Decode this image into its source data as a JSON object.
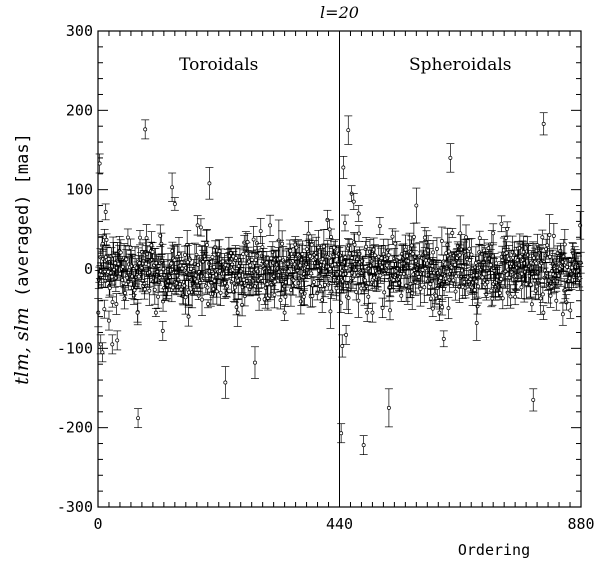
{
  "chart_data": {
    "type": "scatter",
    "title": "l=20",
    "xlabel": "Ordering",
    "ylabel": {
      "italic_part": "tlm, slm",
      "normal_part": "(averaged)   [mas]"
    },
    "xlim": [
      0,
      880
    ],
    "ylim": [
      -300,
      300
    ],
    "x_ticks": [
      0,
      440,
      880
    ],
    "y_ticks": [
      -300,
      -200,
      -100,
      0,
      100,
      200,
      300
    ],
    "x_minor_step": 20,
    "y_minor_step": 20,
    "divider_x": 440,
    "regions": [
      {
        "label": "Toroidals",
        "x_range": [
          0,
          440
        ]
      },
      {
        "label": "Spheroidals",
        "x_range": [
          440,
          880
        ]
      }
    ],
    "error_bars": true,
    "outliers": [
      {
        "x": 3,
        "y": 133,
        "err": 12
      },
      {
        "x": 5,
        "y": -95,
        "err": 12
      },
      {
        "x": 8,
        "y": -105,
        "err": 12
      },
      {
        "x": 12,
        "y": 40,
        "err": 10
      },
      {
        "x": 14,
        "y": 72,
        "err": 10
      },
      {
        "x": 20,
        "y": -65,
        "err": 12
      },
      {
        "x": 26,
        "y": -95,
        "err": 12
      },
      {
        "x": 35,
        "y": -90,
        "err": 12
      },
      {
        "x": 72,
        "y": -55,
        "err": 12
      },
      {
        "x": 73,
        "y": -188,
        "err": 12
      },
      {
        "x": 86,
        "y": 176,
        "err": 12
      },
      {
        "x": 118,
        "y": -78,
        "err": 12
      },
      {
        "x": 135,
        "y": 103,
        "err": 18
      },
      {
        "x": 140,
        "y": 82,
        "err": 8
      },
      {
        "x": 165,
        "y": -60,
        "err": 12
      },
      {
        "x": 203,
        "y": 108,
        "err": 20
      },
      {
        "x": 232,
        "y": -143,
        "err": 20
      },
      {
        "x": 286,
        "y": -118,
        "err": 20
      },
      {
        "x": 340,
        "y": -55,
        "err": 10
      },
      {
        "x": 375,
        "y": -35,
        "err": 10
      },
      {
        "x": 418,
        "y": 62,
        "err": 12
      },
      {
        "x": 422,
        "y": 50,
        "err": 12
      },
      {
        "x": 430,
        "y": 27,
        "err": 8
      },
      {
        "x": 443,
        "y": -207,
        "err": 12
      },
      {
        "x": 445,
        "y": -97,
        "err": 14
      },
      {
        "x": 447,
        "y": 128,
        "err": 14
      },
      {
        "x": 450,
        "y": 58,
        "err": 10
      },
      {
        "x": 452,
        "y": -83,
        "err": 12
      },
      {
        "x": 456,
        "y": 175,
        "err": 18
      },
      {
        "x": 462,
        "y": 95,
        "err": 10
      },
      {
        "x": 466,
        "y": 85,
        "err": 10
      },
      {
        "x": 475,
        "y": 70,
        "err": 10
      },
      {
        "x": 484,
        "y": -222,
        "err": 12
      },
      {
        "x": 500,
        "y": -55,
        "err": 12
      },
      {
        "x": 530,
        "y": -175,
        "err": 24
      },
      {
        "x": 532,
        "y": -52,
        "err": 12
      },
      {
        "x": 580,
        "y": 80,
        "err": 22
      },
      {
        "x": 610,
        "y": -50,
        "err": 10
      },
      {
        "x": 622,
        "y": -55,
        "err": 10
      },
      {
        "x": 627,
        "y": -48,
        "err": 10
      },
      {
        "x": 630,
        "y": -88,
        "err": 10
      },
      {
        "x": 642,
        "y": 140,
        "err": 18
      },
      {
        "x": 660,
        "y": 45,
        "err": 22
      },
      {
        "x": 690,
        "y": -68,
        "err": 22
      },
      {
        "x": 720,
        "y": 45,
        "err": 12
      },
      {
        "x": 735,
        "y": 57,
        "err": 10
      },
      {
        "x": 760,
        "y": -35,
        "err": 10
      },
      {
        "x": 793,
        "y": -165,
        "err": 14
      },
      {
        "x": 812,
        "y": 183,
        "err": 14
      },
      {
        "x": 835,
        "y": -40,
        "err": 12
      },
      {
        "x": 847,
        "y": -57,
        "err": 14
      }
    ],
    "bulk": {
      "n_points": 880,
      "seed": 20,
      "sigma_y": 20,
      "err_mean": 13,
      "err_spread": 5
    }
  }
}
